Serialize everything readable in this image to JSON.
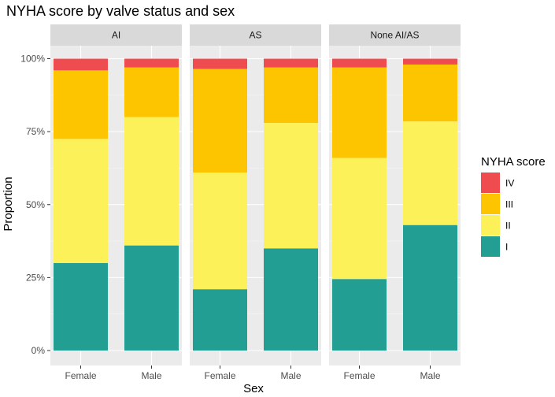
{
  "chart_data": {
    "type": "bar",
    "stacked": true,
    "title": "NYHA score by valve status and sex",
    "xlabel": "Sex",
    "ylabel": "Proportion",
    "ylim": [
      0,
      1
    ],
    "y_ticks": [
      {
        "value": 0,
        "label": "0%"
      },
      {
        "value": 0.25,
        "label": "25%"
      },
      {
        "value": 0.5,
        "label": "50%"
      },
      {
        "value": 0.75,
        "label": "75%"
      },
      {
        "value": 1,
        "label": "100%"
      }
    ],
    "categories": [
      "Female",
      "Male"
    ],
    "legend": {
      "title": "NYHA score",
      "position": "right",
      "entries": [
        {
          "label": "IV",
          "color": "#ef4c4f"
        },
        {
          "label": "III",
          "color": "#fdc500"
        },
        {
          "label": "II",
          "color": "#fdf15a"
        },
        {
          "label": "I",
          "color": "#229e92"
        }
      ]
    },
    "stack_order": [
      "I",
      "II",
      "III",
      "IV"
    ],
    "facets": [
      {
        "name": "AI",
        "bars": [
          {
            "category": "Female",
            "I": 0.3,
            "II": 0.425,
            "III": 0.235,
            "IV": 0.04
          },
          {
            "category": "Male",
            "I": 0.36,
            "II": 0.44,
            "III": 0.17,
            "IV": 0.03
          }
        ]
      },
      {
        "name": "AS",
        "bars": [
          {
            "category": "Female",
            "I": 0.21,
            "II": 0.4,
            "III": 0.355,
            "IV": 0.035
          },
          {
            "category": "Male",
            "I": 0.35,
            "II": 0.43,
            "III": 0.19,
            "IV": 0.03
          }
        ]
      },
      {
        "name": "None AI/AS",
        "bars": [
          {
            "category": "Female",
            "I": 0.245,
            "II": 0.415,
            "III": 0.31,
            "IV": 0.03
          },
          {
            "category": "Male",
            "I": 0.43,
            "II": 0.355,
            "III": 0.195,
            "IV": 0.02
          }
        ]
      }
    ]
  }
}
